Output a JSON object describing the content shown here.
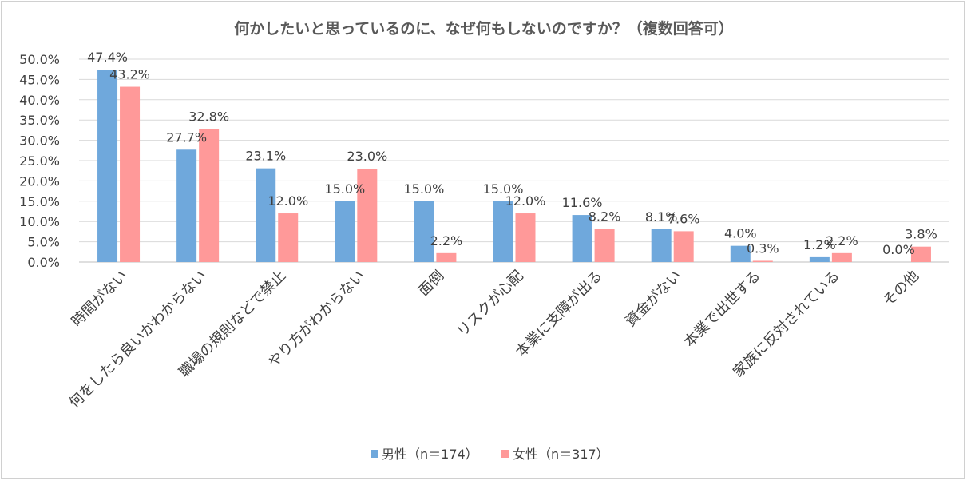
{
  "chart_data": {
    "type": "bar",
    "title": "何かしたいと思っているのに、なぜ何もしないのですか？（複数回答可）",
    "xlabel": "",
    "ylabel": "",
    "ylim": [
      0,
      50
    ],
    "y_ticks": [
      "0.0%",
      "5.0%",
      "10.0%",
      "15.0%",
      "20.0%",
      "25.0%",
      "30.0%",
      "35.0%",
      "40.0%",
      "45.0%",
      "50.0%"
    ],
    "grid": true,
    "legend_position": "bottom",
    "categories": [
      "時間がない",
      "何をしたら良いかわからない",
      "職場の規則などで禁止",
      "やり方がわからない",
      "面倒",
      "リスクが心配",
      "本業に支障が出る",
      "資金がない",
      "本業で出世する",
      "家族に反対されている",
      "その他"
    ],
    "series": [
      {
        "name": "男性（n＝174）",
        "color": "#6fa8dc",
        "values": [
          47.4,
          27.7,
          23.1,
          15.0,
          15.0,
          15.0,
          11.6,
          8.1,
          4.0,
          1.2,
          0.0
        ],
        "labels": [
          "47.4%",
          "27.7%",
          "23.1%",
          "15.0%",
          "15.0%",
          "15.0%",
          "11.6%",
          "8.1%",
          "4.0%",
          "1.2%",
          "0.0%"
        ]
      },
      {
        "name": "女性（n＝317）",
        "color": "#ff9999",
        "values": [
          43.2,
          32.8,
          12.0,
          23.0,
          2.2,
          12.0,
          8.2,
          7.6,
          0.3,
          2.2,
          3.8
        ],
        "labels": [
          "43.2%",
          "32.8%",
          "12.0%",
          "23.0%",
          "2.2%",
          "12.0%",
          "8.2%",
          "7.6%",
          "0.3%",
          "2.2%",
          "3.8%"
        ]
      }
    ]
  }
}
